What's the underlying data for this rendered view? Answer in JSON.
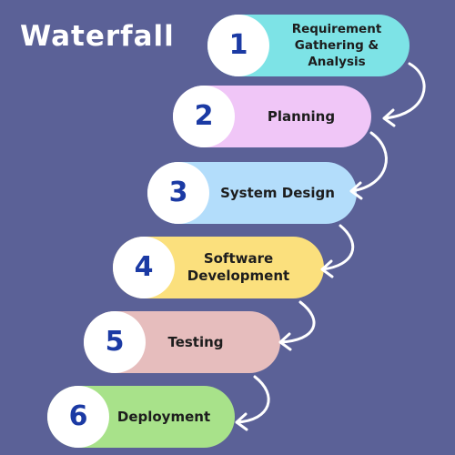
{
  "title": "Waterfall",
  "colors": {
    "background": "#5b6197",
    "number": "#1b3aa4",
    "arrow": "#ffffff"
  },
  "steps": [
    {
      "number": "1",
      "label_lines": [
        "Requirement",
        "Gathering & Analysis"
      ],
      "color": "#7de3e6"
    },
    {
      "number": "2",
      "label_lines": [
        "Planning"
      ],
      "color": "#f0c6f7"
    },
    {
      "number": "3",
      "label_lines": [
        "System Design"
      ],
      "color": "#b3ddfb"
    },
    {
      "number": "4",
      "label_lines": [
        "Software",
        "Development"
      ],
      "color": "#fbe07d"
    },
    {
      "number": "5",
      "label_lines": [
        "Testing"
      ],
      "color": "#e6bdbd"
    },
    {
      "number": "6",
      "label_lines": [
        "Deployment"
      ],
      "color": "#a8e28a"
    }
  ]
}
